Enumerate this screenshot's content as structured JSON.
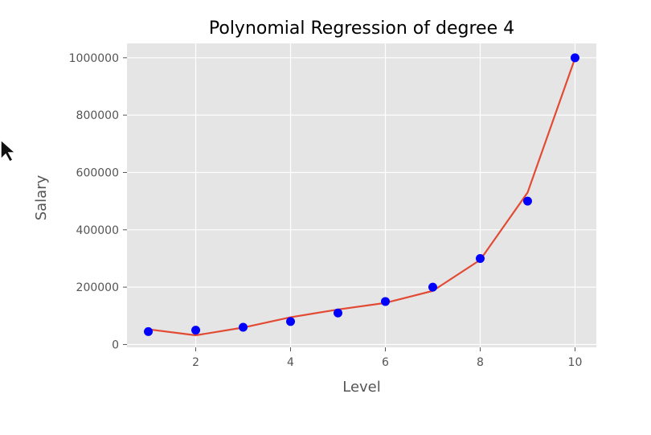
{
  "chart_data": {
    "type": "scatter",
    "title": "Polynomial Regression of degree 4",
    "xlabel": "Level",
    "ylabel": "Salary",
    "xlim": [
      0.55,
      10.45
    ],
    "ylim": [
      -10000,
      1050000
    ],
    "xticks": [
      2,
      4,
      6,
      8,
      10
    ],
    "xtick_labels": [
      "2",
      "4",
      "6",
      "8",
      "10"
    ],
    "yticks": [
      0,
      200000,
      400000,
      600000,
      800000,
      1000000
    ],
    "ytick_labels": [
      "0",
      "200000",
      "400000",
      "600000",
      "800000",
      "1000000"
    ],
    "grid": true,
    "background": "#e5e5e5",
    "grid_color": "#ffffff",
    "series": [
      {
        "kind": "scatter",
        "color": "#0000ff",
        "x": [
          1,
          2,
          3,
          4,
          5,
          6,
          7,
          8,
          9,
          10
        ],
        "y": [
          45000,
          50000,
          60000,
          80000,
          110000,
          150000,
          200000,
          300000,
          500000,
          1000000
        ]
      },
      {
        "kind": "line",
        "color": "#e24a33",
        "x": [
          1,
          2,
          3,
          4,
          5,
          6,
          7,
          8,
          9,
          10
        ],
        "y": [
          53000,
          32000,
          59000,
          95000,
          122000,
          145000,
          187000,
          295000,
          530000,
          998000
        ]
      }
    ]
  }
}
